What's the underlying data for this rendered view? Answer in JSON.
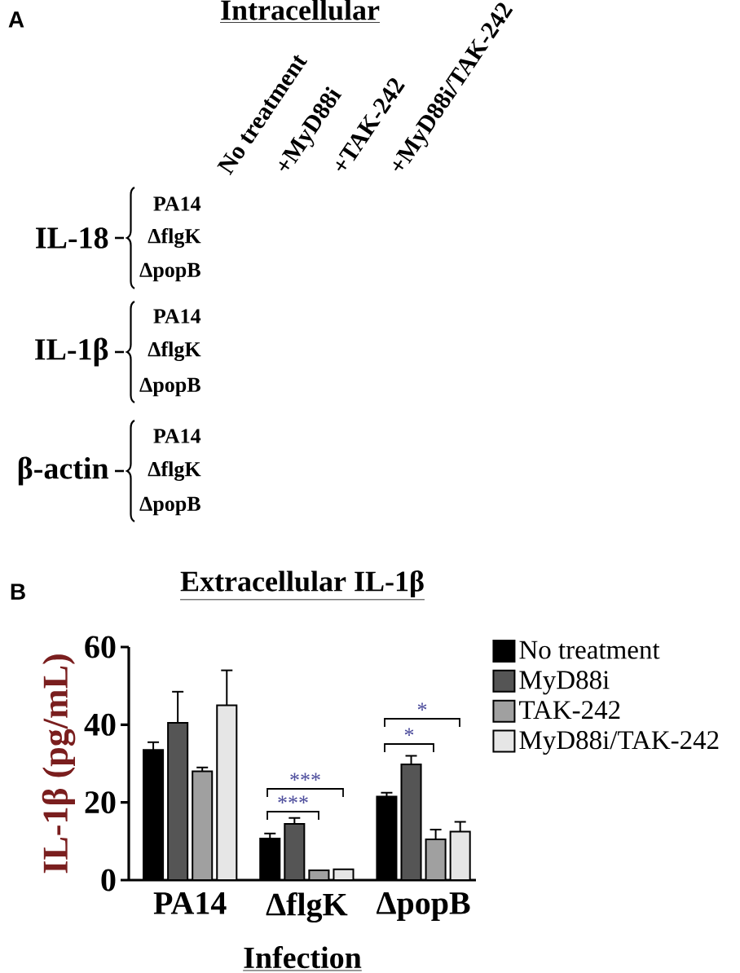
{
  "chart_data": [
    {
      "type": "other",
      "title": "Intracellular",
      "annotations": [
        "A",
        "No treatment",
        "+MyD88i",
        "+TAK-242",
        "+MyD88i/TAK-242",
        "IL-18",
        "PA14",
        "ΔflgK",
        "ΔpopB",
        "IL-1β",
        "PA14",
        "ΔflgK",
        "ΔpopB",
        "β-actin",
        "PA14",
        "ΔflgK",
        "ΔpopB"
      ]
    },
    {
      "type": "bar",
      "title": "Extracellular IL-1β",
      "xlabel": "Infection",
      "ylabel": "IL-1β (pg/mL)",
      "categories": [
        "PA14",
        "ΔflgK",
        "ΔpopB"
      ],
      "series": [
        {
          "name": "No treatment",
          "color": "#000000",
          "values": [
            33.5,
            10.7,
            21.5
          ],
          "errors": [
            [
              33.5,
              35.5
            ],
            [
              10.7,
              12
            ],
            [
              21.5,
              22.5
            ]
          ]
        },
        {
          "name": "MyD88i",
          "color": "#555555",
          "values": [
            40.5,
            14.5,
            29.8
          ],
          "errors": [
            [
              40.5,
              48.5
            ],
            [
              14.5,
              16
            ],
            [
              29.8,
              32
            ]
          ]
        },
        {
          "name": "TAK-242",
          "color": "#a0a0a0",
          "values": [
            28,
            2.5,
            10.5
          ],
          "errors": [
            [
              28,
              29
            ],
            null,
            [
              10.5,
              13
            ]
          ]
        },
        {
          "name": "MyD88i/TAK-242",
          "color": "#e6e6e6",
          "values": [
            45,
            2.8,
            12.5
          ],
          "errors": [
            [
              45,
              54
            ],
            null,
            [
              12.5,
              15
            ]
          ]
        }
      ],
      "ylim": [
        0,
        60
      ],
      "yticks": [
        0,
        20,
        40,
        60
      ],
      "legend": "right",
      "annotations": [
        "B",
        "***",
        "***",
        "*",
        "*"
      ]
    }
  ]
}
